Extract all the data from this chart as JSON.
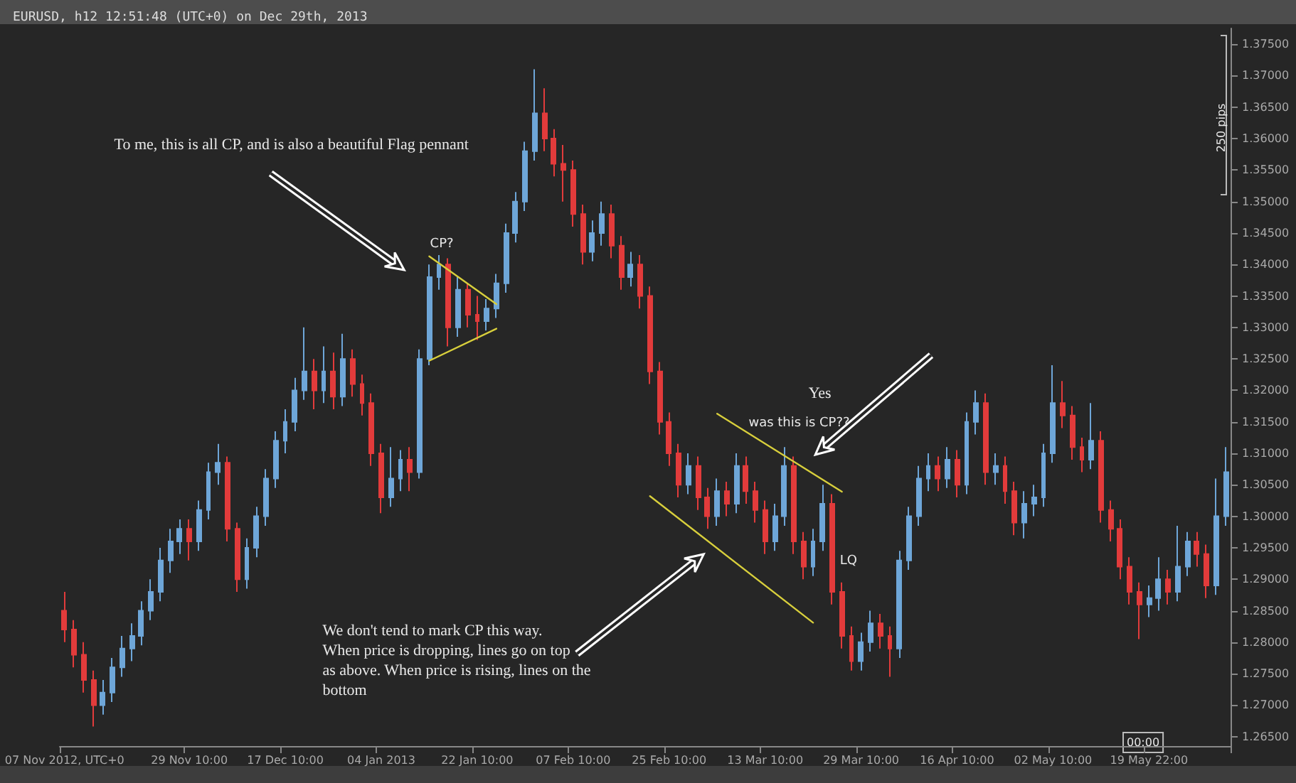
{
  "chart_data": {
    "type": "candlestick",
    "title": "EURUSD, h12 12:51:48 (UTC+0) on Dec 29th, 2013",
    "categories": [
      "07 Nov 2012, UTC+0",
      null,
      null,
      null,
      null,
      null,
      null,
      null,
      null,
      null,
      null,
      null,
      null,
      "29 Nov 10:00",
      null,
      null,
      null,
      null,
      null,
      null,
      null,
      null,
      null,
      "17 Dec 10:00",
      null,
      null,
      null,
      null,
      null,
      null,
      null,
      null,
      null,
      "04 Jan 2013",
      null,
      null,
      null,
      null,
      null,
      null,
      null,
      null,
      null,
      "22 Jan 10:00",
      null,
      null,
      null,
      null,
      null,
      null,
      null,
      null,
      null,
      "07 Feb 10:00",
      null,
      null,
      null,
      null,
      null,
      null,
      null,
      null,
      null,
      "25 Feb 10:00",
      null,
      null,
      null,
      null,
      null,
      null,
      null,
      null,
      null,
      "13 Mar 10:00",
      null,
      null,
      null,
      null,
      null,
      null,
      null,
      null,
      null,
      "29 Mar 10:00",
      null,
      null,
      null,
      null,
      null,
      null,
      null,
      null,
      null,
      "16 Apr 10:00",
      null,
      null,
      null,
      null,
      null,
      null,
      null,
      null,
      null,
      "02 May 10:00",
      null,
      null,
      null,
      null,
      null,
      null,
      null,
      null,
      null,
      "19 May 22:00",
      null,
      null,
      null,
      null,
      null,
      null,
      null,
      null
    ],
    "colors": [
      "#e23b3b",
      "#e23b3b",
      "#e23b3b",
      "#e23b3b",
      "#6ea6d8",
      "#6ea6d8",
      "#6ea6d8",
      "#6ea6d8",
      "#6ea6d8",
      "#6ea6d8",
      "#6ea6d8",
      "#6ea6d8",
      "#6ea6d8",
      "#e23b3b",
      "#6ea6d8",
      "#6ea6d8",
      "#6ea6d8",
      "#e23b3b",
      "#e23b3b",
      "#6ea6d8",
      "#6ea6d8",
      "#6ea6d8",
      "#6ea6d8",
      "#6ea6d8",
      "#6ea6d8",
      "#6ea6d8",
      "#e23b3b",
      "#6ea6d8",
      "#e23b3b",
      "#6ea6d8",
      "#e23b3b",
      "#e23b3b",
      "#e23b3b",
      "#e23b3b",
      "#6ea6d8",
      "#6ea6d8",
      "#e23b3b",
      "#6ea6d8",
      "#6ea6d8",
      "#6ea6d8",
      "#e23b3b",
      "#6ea6d8",
      "#e23b3b",
      "#e23b3b",
      "#6ea6d8",
      "#6ea6d8",
      "#6ea6d8",
      "#6ea6d8",
      "#6ea6d8",
      "#6ea6d8",
      "#e23b3b",
      "#e23b3b",
      "#e23b3b",
      "#e23b3b",
      "#e23b3b",
      "#6ea6d8",
      "#6ea6d8",
      "#e23b3b",
      "#e23b3b",
      "#6ea6d8",
      "#e23b3b",
      "#e23b3b",
      "#e23b3b",
      "#e23b3b",
      "#e23b3b",
      "#6ea6d8",
      "#e23b3b",
      "#e23b3b",
      "#6ea6d8",
      "#e23b3b",
      "#6ea6d8",
      "#e23b3b",
      "#e23b3b",
      "#e23b3b",
      "#6ea6d8",
      "#6ea6d8",
      "#e23b3b",
      "#e23b3b",
      "#6ea6d8",
      "#6ea6d8",
      "#e23b3b",
      "#e23b3b",
      "#e23b3b",
      "#6ea6d8",
      "#6ea6d8",
      "#e23b3b",
      "#e23b3b",
      "#6ea6d8",
      "#6ea6d8",
      "#6ea6d8",
      "#6ea6d8",
      "#e23b3b",
      "#6ea6d8",
      "#e23b3b",
      "#6ea6d8",
      "#6ea6d8",
      "#e23b3b",
      "#6ea6d8",
      "#e23b3b",
      "#e23b3b",
      "#6ea6d8",
      "#6ea6d8",
      "#6ea6d8",
      "#6ea6d8",
      "#e23b3b",
      "#e23b3b",
      "#e23b3b",
      "#6ea6d8",
      "#e23b3b",
      "#e23b3b",
      "#e23b3b",
      "#e23b3b",
      "#e23b3b",
      "#6ea6d8",
      "#6ea6d8",
      "#e23b3b",
      "#6ea6d8",
      "#6ea6d8",
      "#e23b3b",
      "#e23b3b",
      "#6ea6d8",
      "#6ea6d8"
    ],
    "ohlc": [
      [
        1.285,
        1.288,
        1.28,
        1.282
      ],
      [
        1.282,
        1.2835,
        1.276,
        1.278
      ],
      [
        1.278,
        1.28,
        1.272,
        1.274
      ],
      [
        1.274,
        1.2755,
        1.2666,
        1.27
      ],
      [
        1.27,
        1.274,
        1.2685,
        1.272
      ],
      [
        1.272,
        1.2775,
        1.2705,
        1.276
      ],
      [
        1.276,
        1.281,
        1.2745,
        1.279
      ],
      [
        1.279,
        1.283,
        1.277,
        1.281
      ],
      [
        1.281,
        1.2865,
        1.2795,
        1.285
      ],
      [
        1.285,
        1.29,
        1.2835,
        1.288
      ],
      [
        1.288,
        1.295,
        1.2865,
        1.293
      ],
      [
        1.293,
        1.298,
        1.291,
        1.296
      ],
      [
        1.296,
        1.2995,
        1.294,
        1.298
      ],
      [
        1.298,
        1.2995,
        1.293,
        1.296
      ],
      [
        1.296,
        1.3025,
        1.2945,
        1.301
      ],
      [
        1.301,
        1.3085,
        1.2995,
        1.307
      ],
      [
        1.307,
        1.3115,
        1.305,
        1.3085
      ],
      [
        1.3085,
        1.3095,
        1.296,
        1.298
      ],
      [
        1.298,
        1.299,
        1.288,
        1.29
      ],
      [
        1.29,
        1.2965,
        1.2885,
        1.295
      ],
      [
        1.295,
        1.3015,
        1.2935,
        1.3
      ],
      [
        1.3,
        1.3075,
        1.2985,
        1.306
      ],
      [
        1.306,
        1.3135,
        1.3045,
        1.312
      ],
      [
        1.312,
        1.317,
        1.31,
        1.315
      ],
      [
        1.315,
        1.322,
        1.3135,
        1.32
      ],
      [
        1.32,
        1.33,
        1.3185,
        1.323
      ],
      [
        1.323,
        1.325,
        1.317,
        1.32
      ],
      [
        1.32,
        1.327,
        1.318,
        1.323
      ],
      [
        1.323,
        1.326,
        1.317,
        1.319
      ],
      [
        1.319,
        1.329,
        1.3175,
        1.325
      ],
      [
        1.325,
        1.3265,
        1.319,
        1.321
      ],
      [
        1.321,
        1.3225,
        1.316,
        1.318
      ],
      [
        1.318,
        1.3195,
        1.308,
        1.31
      ],
      [
        1.31,
        1.3115,
        1.3005,
        1.303
      ],
      [
        1.303,
        1.311,
        1.3015,
        1.306
      ],
      [
        1.306,
        1.3105,
        1.304,
        1.309
      ],
      [
        1.309,
        1.311,
        1.304,
        1.307
      ],
      [
        1.307,
        1.3265,
        1.306,
        1.325
      ],
      [
        1.325,
        1.34,
        1.324,
        1.338
      ],
      [
        1.338,
        1.3415,
        1.336,
        1.34
      ],
      [
        1.34,
        1.341,
        1.327,
        1.33
      ],
      [
        1.33,
        1.338,
        1.3285,
        1.336
      ],
      [
        1.336,
        1.337,
        1.33,
        1.332
      ],
      [
        1.332,
        1.335,
        1.328,
        1.331
      ],
      [
        1.331,
        1.3345,
        1.3295,
        1.333
      ],
      [
        1.333,
        1.3385,
        1.3315,
        1.337
      ],
      [
        1.337,
        1.3465,
        1.3355,
        1.345
      ],
      [
        1.345,
        1.3515,
        1.3435,
        1.35
      ],
      [
        1.35,
        1.3595,
        1.3485,
        1.358
      ],
      [
        1.358,
        1.371,
        1.3565,
        1.364
      ],
      [
        1.364,
        1.368,
        1.358,
        1.36
      ],
      [
        1.36,
        1.3615,
        1.354,
        1.356
      ],
      [
        1.356,
        1.359,
        1.35,
        1.355
      ],
      [
        1.355,
        1.3565,
        1.346,
        1.348
      ],
      [
        1.348,
        1.3495,
        1.34,
        1.342
      ],
      [
        1.342,
        1.347,
        1.3405,
        1.345
      ],
      [
        1.345,
        1.35,
        1.343,
        1.348
      ],
      [
        1.348,
        1.3495,
        1.341,
        1.343
      ],
      [
        1.343,
        1.3445,
        1.336,
        1.338
      ],
      [
        1.338,
        1.342,
        1.3365,
        1.34
      ],
      [
        1.34,
        1.3415,
        1.333,
        1.335
      ],
      [
        1.335,
        1.3365,
        1.321,
        1.323
      ],
      [
        1.323,
        1.3245,
        1.313,
        1.315
      ],
      [
        1.315,
        1.3165,
        1.308,
        1.31
      ],
      [
        1.31,
        1.3115,
        1.303,
        1.305
      ],
      [
        1.305,
        1.31,
        1.3035,
        1.308
      ],
      [
        1.308,
        1.3095,
        1.301,
        1.303
      ],
      [
        1.303,
        1.3045,
        1.298,
        1.3
      ],
      [
        1.3,
        1.306,
        1.2985,
        1.304
      ],
      [
        1.304,
        1.3055,
        1.3,
        1.302
      ],
      [
        1.302,
        1.31,
        1.3005,
        1.308
      ],
      [
        1.308,
        1.3095,
        1.302,
        1.304
      ],
      [
        1.304,
        1.3055,
        1.299,
        1.301
      ],
      [
        1.301,
        1.3025,
        1.294,
        1.296
      ],
      [
        1.296,
        1.302,
        1.2945,
        1.3
      ],
      [
        1.3,
        1.311,
        1.2985,
        1.308
      ],
      [
        1.308,
        1.3095,
        1.294,
        1.296
      ],
      [
        1.296,
        1.2975,
        1.29,
        1.292
      ],
      [
        1.292,
        1.298,
        1.2905,
        1.296
      ],
      [
        1.296,
        1.305,
        1.2945,
        1.302
      ],
      [
        1.302,
        1.3035,
        1.286,
        1.288
      ],
      [
        1.288,
        1.2895,
        1.279,
        1.281
      ],
      [
        1.281,
        1.2825,
        1.2755,
        1.277
      ],
      [
        1.277,
        1.2815,
        1.2755,
        1.28
      ],
      [
        1.28,
        1.285,
        1.2785,
        1.283
      ],
      [
        1.283,
        1.2845,
        1.279,
        1.281
      ],
      [
        1.281,
        1.2825,
        1.2745,
        1.279
      ],
      [
        1.279,
        1.2945,
        1.2775,
        1.293
      ],
      [
        1.293,
        1.3015,
        1.2915,
        1.3
      ],
      [
        1.3,
        1.308,
        1.2985,
        1.306
      ],
      [
        1.306,
        1.31,
        1.304,
        1.308
      ],
      [
        1.308,
        1.3095,
        1.304,
        1.306
      ],
      [
        1.306,
        1.311,
        1.3045,
        1.309
      ],
      [
        1.309,
        1.3105,
        1.303,
        1.305
      ],
      [
        1.305,
        1.3165,
        1.3035,
        1.315
      ],
      [
        1.315,
        1.32,
        1.313,
        1.318
      ],
      [
        1.318,
        1.3195,
        1.305,
        1.307
      ],
      [
        1.307,
        1.31,
        1.305,
        1.308
      ],
      [
        1.308,
        1.3095,
        1.302,
        1.304
      ],
      [
        1.304,
        1.3055,
        1.297,
        1.299
      ],
      [
        1.299,
        1.304,
        1.2965,
        1.302
      ],
      [
        1.302,
        1.305,
        1.3,
        1.303
      ],
      [
        1.303,
        1.3115,
        1.3015,
        1.31
      ],
      [
        1.31,
        1.324,
        1.3085,
        1.318
      ],
      [
        1.318,
        1.3215,
        1.314,
        1.316
      ],
      [
        1.316,
        1.3175,
        1.309,
        1.311
      ],
      [
        1.311,
        1.3125,
        1.307,
        1.309
      ],
      [
        1.309,
        1.318,
        1.3075,
        1.312
      ],
      [
        1.312,
        1.3135,
        1.299,
        1.301
      ],
      [
        1.301,
        1.3025,
        1.296,
        1.298
      ],
      [
        1.298,
        1.2995,
        1.29,
        1.292
      ],
      [
        1.292,
        1.2935,
        1.286,
        1.288
      ],
      [
        1.288,
        1.2895,
        1.2805,
        1.286
      ],
      [
        1.286,
        1.289,
        1.284,
        1.287
      ],
      [
        1.287,
        1.2935,
        1.285,
        1.29
      ],
      [
        1.29,
        1.2915,
        1.286,
        1.288
      ],
      [
        1.288,
        1.2985,
        1.2865,
        1.292
      ],
      [
        1.292,
        1.2975,
        1.2905,
        1.296
      ],
      [
        1.296,
        1.2975,
        1.292,
        1.294
      ],
      [
        1.294,
        1.2955,
        1.287,
        1.289
      ],
      [
        1.289,
        1.306,
        1.2875,
        1.3
      ],
      [
        1.3,
        1.311,
        1.2985,
        1.307
      ]
    ],
    "series": [
      {
        "type": "line",
        "color": "#d8cf3c",
        "values": [
          null,
          null,
          null,
          null,
          null,
          null,
          null,
          null,
          null,
          null,
          null,
          null,
          null,
          null,
          null,
          null,
          null,
          null,
          null,
          null,
          null,
          null,
          null,
          null,
          null,
          null,
          null,
          null,
          null,
          null,
          null,
          null,
          null,
          null,
          null,
          null,
          null,
          null,
          1.3413,
          null,
          null,
          null,
          null,
          null,
          null,
          1.3337,
          null,
          null,
          null,
          null,
          null,
          null,
          null,
          null,
          null,
          null,
          null,
          null,
          null,
          null,
          null,
          null,
          null,
          null,
          null,
          null,
          null,
          null,
          null,
          null,
          null,
          null,
          null,
          null,
          null,
          null,
          null,
          null,
          null,
          null,
          null,
          null,
          null,
          null,
          null,
          null,
          null,
          null,
          null,
          null,
          null,
          null,
          null,
          null,
          null,
          null,
          null,
          null,
          null,
          null,
          null,
          null,
          null,
          null,
          null,
          null,
          null,
          null,
          null,
          null,
          null,
          null,
          null,
          null,
          null,
          null,
          null,
          null,
          null,
          null,
          null,
          null
        ]
      },
      {
        "type": "line",
        "color": "#d8cf3c",
        "values": [
          null,
          null,
          null,
          null,
          null,
          null,
          null,
          null,
          null,
          null,
          null,
          null,
          null,
          null,
          null,
          null,
          null,
          null,
          null,
          null,
          null,
          null,
          null,
          null,
          null,
          null,
          null,
          null,
          null,
          null,
          null,
          null,
          null,
          null,
          null,
          null,
          null,
          null,
          1.3247,
          null,
          null,
          null,
          null,
          null,
          null,
          1.3298,
          null,
          null,
          null,
          null,
          null,
          null,
          null,
          null,
          null,
          null,
          null,
          null,
          null,
          null,
          null,
          null,
          null,
          null,
          null,
          null,
          null,
          null,
          null,
          null,
          null,
          null,
          null,
          null,
          null,
          null,
          null,
          null,
          null,
          null,
          null,
          null,
          null,
          null,
          null,
          null,
          null,
          null,
          null,
          null,
          null,
          null,
          null,
          null,
          null,
          null,
          null,
          null,
          null,
          null,
          null,
          null,
          null,
          null,
          null,
          null,
          null,
          null,
          null,
          null,
          null,
          null,
          null,
          null,
          null,
          null,
          null,
          null,
          null,
          null,
          null,
          null
        ]
      },
      {
        "type": "line",
        "color": "#d8cf3c",
        "values": [
          null,
          null,
          null,
          null,
          null,
          null,
          null,
          null,
          null,
          null,
          null,
          null,
          null,
          null,
          null,
          null,
          null,
          null,
          null,
          null,
          null,
          null,
          null,
          null,
          null,
          null,
          null,
          null,
          null,
          null,
          null,
          null,
          null,
          null,
          null,
          null,
          null,
          null,
          null,
          null,
          null,
          null,
          null,
          null,
          null,
          null,
          null,
          null,
          null,
          null,
          null,
          null,
          null,
          null,
          null,
          null,
          null,
          null,
          null,
          null,
          null,
          null,
          null,
          null,
          null,
          null,
          null,
          null,
          1.3163,
          null,
          null,
          null,
          null,
          null,
          null,
          null,
          null,
          null,
          null,
          null,
          null,
          1.3039,
          null,
          null,
          null,
          null,
          null,
          null,
          null,
          null,
          null,
          null,
          null,
          null,
          null,
          null,
          null,
          null,
          null,
          null,
          null,
          null,
          null,
          null,
          null,
          null,
          null,
          null,
          null,
          null,
          null,
          null,
          null,
          null,
          null,
          null,
          null,
          null,
          null,
          null,
          null,
          null
        ]
      },
      {
        "type": "line",
        "color": "#d8cf3c",
        "values": [
          null,
          null,
          null,
          null,
          null,
          null,
          null,
          null,
          null,
          null,
          null,
          null,
          null,
          null,
          null,
          null,
          null,
          null,
          null,
          null,
          null,
          null,
          null,
          null,
          null,
          null,
          null,
          null,
          null,
          null,
          null,
          null,
          null,
          null,
          null,
          null,
          null,
          null,
          null,
          null,
          null,
          null,
          null,
          null,
          null,
          null,
          null,
          null,
          null,
          null,
          null,
          null,
          null,
          null,
          null,
          null,
          null,
          null,
          null,
          null,
          null,
          1.3032,
          null,
          null,
          null,
          null,
          null,
          null,
          null,
          null,
          null,
          null,
          null,
          null,
          null,
          null,
          null,
          null,
          1.2831,
          null,
          null,
          null,
          null,
          null,
          null,
          null,
          null,
          null,
          null,
          null,
          null,
          null,
          null,
          null,
          null,
          null,
          null,
          null,
          null,
          null,
          null,
          null,
          null,
          null,
          null,
          null,
          null,
          null,
          null,
          null,
          null,
          null,
          null,
          null,
          null,
          null,
          null,
          null,
          null,
          null,
          null,
          null
        ]
      }
    ],
    "ylim": [
      1.2635,
      1.3775
    ],
    "yticks": [
      {
        "value": 1.265,
        "label": "1.26500"
      },
      {
        "value": 1.27,
        "label": "1.27000"
      },
      {
        "value": 1.275,
        "label": "1.27500"
      },
      {
        "value": 1.28,
        "label": "1.28000"
      },
      {
        "value": 1.285,
        "label": "1.28500"
      },
      {
        "value": 1.29,
        "label": "1.29000"
      },
      {
        "value": 1.295,
        "label": "1.29500"
      },
      {
        "value": 1.3,
        "label": "1.30000"
      },
      {
        "value": 1.305,
        "label": "1.30500"
      },
      {
        "value": 1.31,
        "label": "1.31000"
      },
      {
        "value": 1.315,
        "label": "1.31500"
      },
      {
        "value": 1.32,
        "label": "1.32000"
      },
      {
        "value": 1.325,
        "label": "1.32500"
      },
      {
        "value": 1.33,
        "label": "1.33000"
      },
      {
        "value": 1.335,
        "label": "1.33500"
      },
      {
        "value": 1.34,
        "label": "1.34000"
      },
      {
        "value": 1.345,
        "label": "1.34500"
      },
      {
        "value": 1.35,
        "label": "1.35000"
      },
      {
        "value": 1.355,
        "label": "1.35500"
      },
      {
        "value": 1.36,
        "label": "1.36000"
      },
      {
        "value": 1.365,
        "label": "1.36500"
      },
      {
        "value": 1.37,
        "label": "1.37000"
      },
      {
        "value": 1.375,
        "label": "1.37500"
      }
    ],
    "annotations": [
      "To me, this is all CP, and is also a beautiful Flag pennant",
      "CP?",
      "Yes",
      "was this is CP??",
      "LQ",
      "We don't tend to mark CP this way.\nWhen price is dropping, lines go on top\nas above. When price is rising, lines on the\nbottom",
      "250 pips",
      "00:00"
    ],
    "grid": false
  }
}
